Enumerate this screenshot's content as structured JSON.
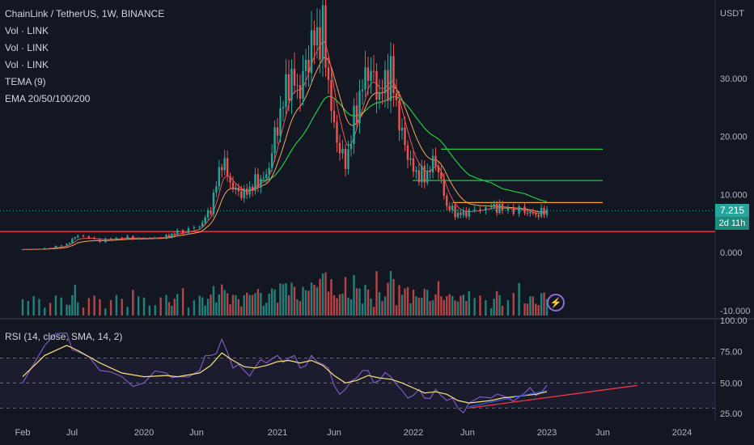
{
  "header": {
    "symbol_line": "ChainLink / TetherUS, 1W, BINANCE",
    "indicators": [
      "Vol · LINK",
      "Vol · LINK",
      "Vol · LINK",
      "TEMA (9)",
      "EMA 20/50/100/200"
    ]
  },
  "price_scale": {
    "currency": "USDT",
    "ticks": [
      "30.000",
      "20.000",
      "10.000",
      "0.000",
      "-10.000"
    ]
  },
  "rsi_panel": {
    "title": "RSI (14, close, SMA, 14, 2)",
    "ticks": [
      "100.00",
      "75.00",
      "50.00",
      "25.00"
    ]
  },
  "last_price": {
    "value": "7.215",
    "countdown": "2d 11h"
  },
  "time_axis": [
    "Feb",
    "Jul",
    "2020",
    "Jun",
    "2021",
    "Jun",
    "2022",
    "Jun",
    "2023",
    "Jun",
    "2024"
  ],
  "colors": {
    "up": "#26a69a",
    "down": "#ef5350",
    "ema20": "#ef5350",
    "ema50": "#f7a35c",
    "ema200": "#26c846",
    "rsi": "#7e57c2",
    "rsi_ma": "#f7e07a",
    "support": "#f23645",
    "level_orange": "#f7a21b",
    "level_green": "#26c846"
  },
  "icons": {
    "lightning": "lightning-icon"
  },
  "chart_data": [
    {
      "type": "line",
      "title": "ChainLink / TetherUS, 1W, BINANCE",
      "ylabel": "USDT",
      "ylim": [
        -10,
        42
      ],
      "x": [
        "2019-02",
        "2019-04",
        "2019-06",
        "2019-07",
        "2019-09",
        "2019-11",
        "2020-01",
        "2020-03",
        "2020-04",
        "2020-06",
        "2020-07",
        "2020-08",
        "2020-09",
        "2020-10",
        "2020-11",
        "2020-12",
        "2021-01",
        "2021-02",
        "2021-03",
        "2021-04",
        "2021-05",
        "2021-06",
        "2021-07",
        "2021-08",
        "2021-09",
        "2021-10",
        "2021-11",
        "2021-12",
        "2022-01",
        "2022-02",
        "2022-03",
        "2022-04",
        "2022-05",
        "2022-06",
        "2022-08",
        "2022-09",
        "2022-11",
        "2022-12",
        "2023-01"
      ],
      "series": [
        {
          "name": "Price (close)",
          "values": [
            0.5,
            0.7,
            1.4,
            3.0,
            2.0,
            2.6,
            2.4,
            2.7,
            3.5,
            4.5,
            7.5,
            16,
            11,
            10,
            12,
            13,
            22,
            30,
            28,
            36,
            38,
            21,
            15,
            25,
            32,
            27,
            31,
            20,
            14,
            13,
            16,
            8,
            6.5,
            7,
            8,
            7.5,
            7.1,
            6.5,
            7.2
          ]
        }
      ],
      "horizontal_levels": [
        {
          "value": 3.6,
          "color": "red"
        },
        {
          "value": 8.6,
          "color": "orange"
        },
        {
          "value": 12.4,
          "color": "green"
        },
        {
          "value": 17.8,
          "color": "green"
        }
      ]
    },
    {
      "type": "line",
      "title": "RSI (14, close, SMA, 14, 2)",
      "ylim": [
        25,
        100
      ],
      "bands": [
        30,
        70
      ],
      "x": [
        "2019-02",
        "2019-04",
        "2019-06",
        "2019-07",
        "2019-09",
        "2019-11",
        "2020-01",
        "2020-03",
        "2020-04",
        "2020-06",
        "2020-07",
        "2020-08",
        "2020-09",
        "2020-10",
        "2020-11",
        "2020-12",
        "2021-01",
        "2021-02",
        "2021-03",
        "2021-04",
        "2021-05",
        "2021-06",
        "2021-07",
        "2021-08",
        "2021-09",
        "2021-10",
        "2021-11",
        "2021-12",
        "2022-01",
        "2022-02",
        "2022-03",
        "2022-04",
        "2022-05",
        "2022-06",
        "2022-08",
        "2022-09",
        "2022-11",
        "2022-12",
        "2023-01"
      ],
      "series": [
        {
          "name": "RSI",
          "values": [
            50,
            80,
            90,
            75,
            60,
            55,
            50,
            58,
            55,
            60,
            72,
            85,
            62,
            60,
            63,
            66,
            72,
            70,
            62,
            72,
            65,
            48,
            45,
            54,
            60,
            52,
            55,
            44,
            40,
            38,
            45,
            36,
            30,
            34,
            38,
            40,
            42,
            40,
            48
          ]
        },
        {
          "name": "RSI-based MA",
          "values": [
            55,
            72,
            80,
            76,
            66,
            58,
            55,
            56,
            55,
            58,
            64,
            74,
            68,
            63,
            62,
            64,
            67,
            68,
            66,
            68,
            64,
            56,
            50,
            52,
            56,
            54,
            53,
            50,
            46,
            42,
            43,
            41,
            36,
            34,
            36,
            38,
            40,
            41,
            43
          ]
        }
      ]
    }
  ]
}
